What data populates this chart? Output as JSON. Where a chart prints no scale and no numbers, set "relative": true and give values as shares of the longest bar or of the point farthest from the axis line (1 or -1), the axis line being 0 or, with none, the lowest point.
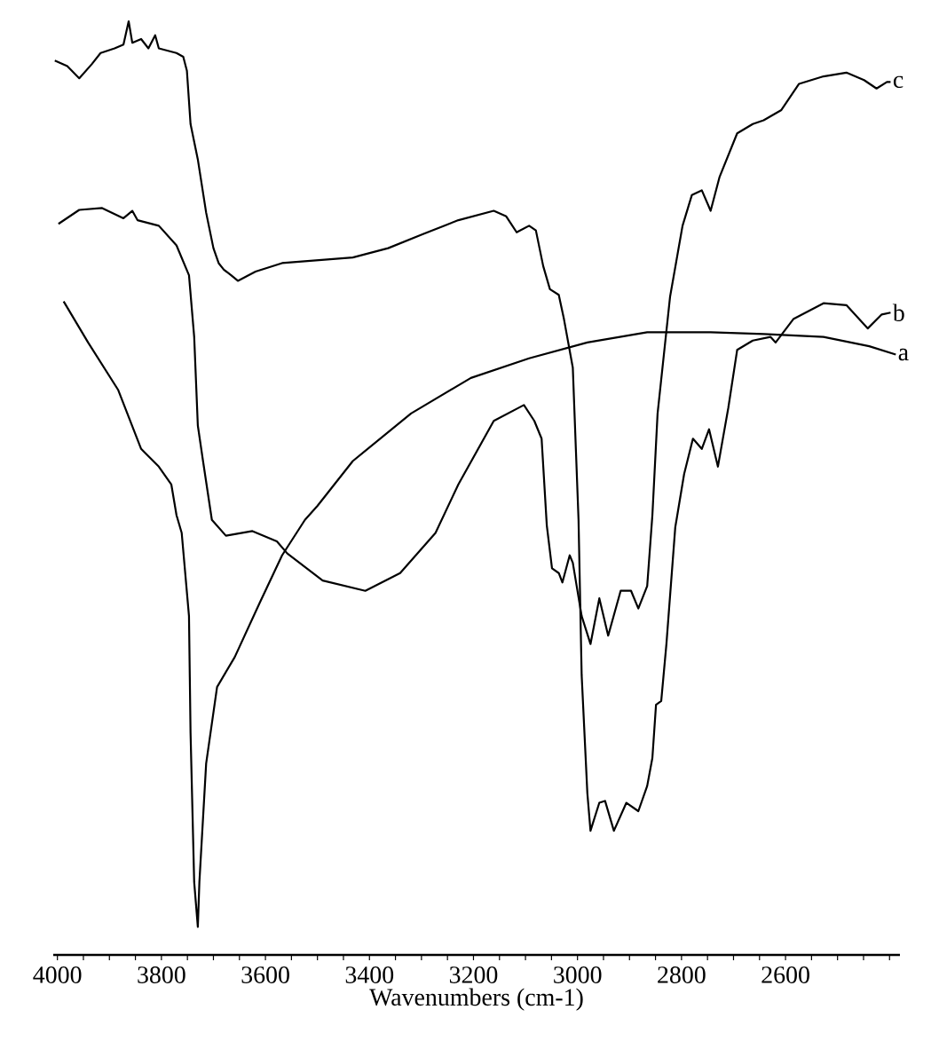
{
  "chart_data": {
    "type": "line",
    "xlabel": "Wavenumbers (cm-1)",
    "relative": true,
    "xlim": [
      4008,
      2380
    ],
    "marker": "none",
    "line_style": "solid",
    "xticks": [
      4000,
      {
        "value": 3950,
        "label": null
      },
      {
        "value": 3900,
        "label": null
      },
      {
        "value": 3850,
        "label": null
      },
      3800,
      {
        "value": 3750,
        "label": null
      },
      {
        "value": 3700,
        "label": null
      },
      {
        "value": 3650,
        "label": null
      },
      3600,
      {
        "value": 3550,
        "label": null
      },
      {
        "value": 3500,
        "label": null
      },
      {
        "value": 3450,
        "label": null
      },
      3400,
      {
        "value": 3350,
        "label": null
      },
      {
        "value": 3300,
        "label": null
      },
      {
        "value": 3250,
        "label": null
      },
      3200,
      {
        "value": 3150,
        "label": null
      },
      {
        "value": 3100,
        "label": null
      },
      {
        "value": 3050,
        "label": null
      },
      3000,
      {
        "value": 2950,
        "label": null
      },
      {
        "value": 2900,
        "label": null
      },
      {
        "value": 2850,
        "label": null
      },
      2800,
      {
        "value": 2750,
        "label": null
      },
      {
        "value": 2700,
        "label": null
      },
      {
        "value": 2650,
        "label": null
      },
      2600,
      {
        "value": 2550,
        "label": null
      },
      {
        "value": 2500,
        "label": null
      },
      {
        "value": 2450,
        "label": null
      },
      {
        "value": 2400,
        "label": null
      }
    ],
    "series": [
      {
        "name": "b",
        "color": "#000000",
        "x": [
          4005,
          3981,
          3958,
          3934,
          3917,
          3890,
          3873,
          3863,
          3856,
          3839,
          3825,
          3812,
          3805,
          3771,
          3758,
          3751,
          3744,
          3730,
          3714,
          3700,
          3690,
          3680,
          3666,
          3653,
          3619,
          3568,
          3432,
          3364,
          3297,
          3229,
          3161,
          3137,
          3117,
          3093,
          3080,
          3066,
          3053,
          3036,
          3026,
          3009,
          2998,
          2992,
          2981,
          2975,
          2958,
          2947,
          2930,
          2906,
          2883,
          2866,
          2856,
          2849,
          2839,
          2829,
          2812,
          2795,
          2778,
          2761,
          2747,
          2730,
          2710,
          2693,
          2663,
          2629,
          2619,
          2585,
          2527,
          2483,
          2442,
          2415,
          2398
        ],
        "values": [
          0.958,
          0.952,
          0.939,
          0.954,
          0.966,
          0.971,
          0.975,
          1.0,
          0.977,
          0.981,
          0.971,
          0.985,
          0.971,
          0.966,
          0.962,
          0.947,
          0.89,
          0.852,
          0.795,
          0.757,
          0.741,
          0.734,
          0.728,
          0.722,
          0.732,
          0.741,
          0.747,
          0.757,
          0.772,
          0.787,
          0.797,
          0.791,
          0.774,
          0.781,
          0.776,
          0.738,
          0.713,
          0.707,
          0.681,
          0.629,
          0.466,
          0.3,
          0.173,
          0.133,
          0.163,
          0.165,
          0.133,
          0.163,
          0.154,
          0.181,
          0.211,
          0.268,
          0.272,
          0.333,
          0.458,
          0.515,
          0.553,
          0.542,
          0.563,
          0.523,
          0.586,
          0.648,
          0.658,
          0.662,
          0.656,
          0.681,
          0.698,
          0.696,
          0.671,
          0.686,
          0.688
        ]
      },
      {
        "name": "c",
        "color": "#000000",
        "x": [
          3998,
          3958,
          3914,
          3873,
          3856,
          3846,
          3805,
          3771,
          3747,
          3737,
          3730,
          3720,
          3703,
          3676,
          3625,
          3578,
          3558,
          3490,
          3408,
          3341,
          3273,
          3229,
          3161,
          3103,
          3083,
          3069,
          3059,
          3049,
          3036,
          3029,
          3015,
          3009,
          2992,
          2975,
          2958,
          2941,
          2917,
          2897,
          2883,
          2866,
          2856,
          2846,
          2822,
          2798,
          2780,
          2761,
          2744,
          2727,
          2693,
          2663,
          2642,
          2608,
          2574,
          2527,
          2483,
          2449,
          2425,
          2405,
          2398
        ],
        "values": [
          0.783,
          0.798,
          0.8,
          0.789,
          0.797,
          0.787,
          0.781,
          0.76,
          0.728,
          0.662,
          0.567,
          0.529,
          0.466,
          0.449,
          0.454,
          0.443,
          0.43,
          0.401,
          0.39,
          0.409,
          0.452,
          0.504,
          0.572,
          0.589,
          0.572,
          0.553,
          0.46,
          0.414,
          0.409,
          0.399,
          0.428,
          0.42,
          0.363,
          0.333,
          0.382,
          0.342,
          0.39,
          0.39,
          0.371,
          0.395,
          0.471,
          0.58,
          0.705,
          0.781,
          0.814,
          0.819,
          0.797,
          0.833,
          0.88,
          0.89,
          0.894,
          0.905,
          0.933,
          0.941,
          0.945,
          0.937,
          0.928,
          0.935,
          0.935
        ]
      },
      {
        "name": "a",
        "color": "#000000",
        "x": [
          3988,
          3941,
          3883,
          3839,
          3805,
          3781,
          3771,
          3761,
          3747,
          3744,
          3737,
          3730,
          3727,
          3714,
          3693,
          3659,
          3612,
          3568,
          3524,
          3500,
          3432,
          3320,
          3205,
          3093,
          2981,
          2866,
          2744,
          2642,
          2527,
          2439,
          2388
        ],
        "values": [
          0.7,
          0.656,
          0.605,
          0.542,
          0.523,
          0.504,
          0.471,
          0.452,
          0.363,
          0.238,
          0.078,
          0.03,
          0.078,
          0.205,
          0.287,
          0.319,
          0.376,
          0.428,
          0.466,
          0.481,
          0.529,
          0.58,
          0.618,
          0.639,
          0.656,
          0.667,
          0.667,
          0.665,
          0.662,
          0.652,
          0.643
        ]
      }
    ]
  }
}
